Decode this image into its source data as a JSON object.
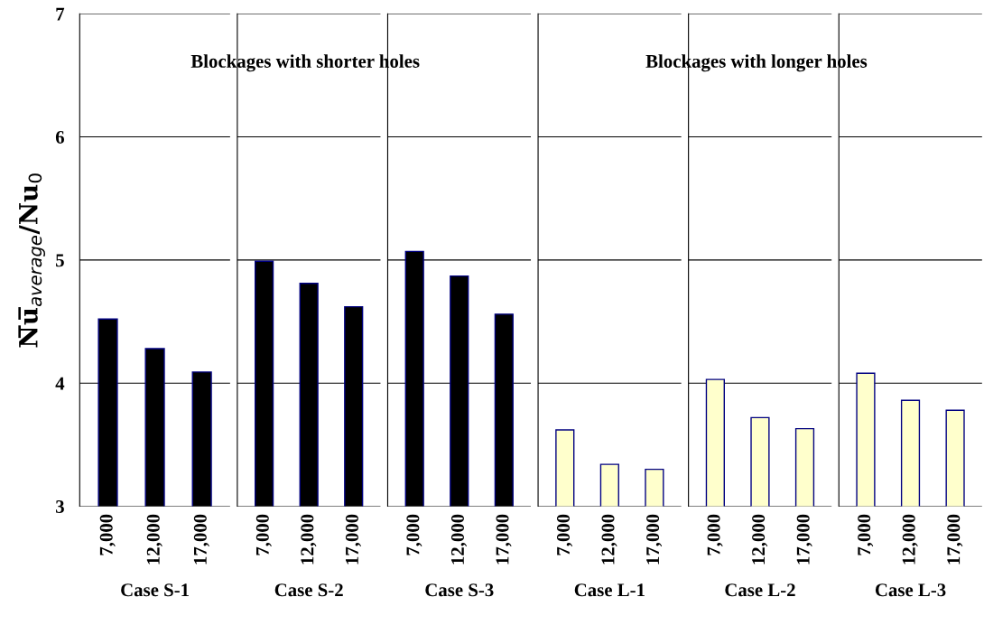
{
  "chart_data": [
    {
      "type": "bar",
      "categories": [
        "7,000",
        "12,000",
        "17,000"
      ],
      "values": [
        4.52,
        4.28,
        4.09
      ],
      "colors": [
        "#000000",
        "#000000",
        "#000000"
      ],
      "xlabel": "Case S-1",
      "ylabel": "N̅u̅$_{average}$/Nu$_{0}$",
      "ylim": [
        3,
        7
      ],
      "yticks": [
        3,
        4,
        5,
        6,
        7
      ],
      "grid": "y"
    },
    {
      "type": "bar",
      "categories": [
        "7,000",
        "12,000",
        "17,000"
      ],
      "values": [
        4.99,
        4.81,
        4.62
      ],
      "colors": [
        "#000000",
        "#000000",
        "#000000"
      ],
      "xlabel": "Case S-2",
      "ylim": [
        3,
        7
      ],
      "yticks": [
        3,
        4,
        5,
        6,
        7
      ],
      "grid": "y",
      "tick_labels": "x",
      "annotations": [
        "Blockages with shorter holes"
      ]
    },
    {
      "type": "bar",
      "categories": [
        "7,000",
        "12,000",
        "17,000"
      ],
      "values": [
        5.07,
        4.87,
        4.56
      ],
      "colors": [
        "#000000",
        "#000000",
        "#000000"
      ],
      "xlabel": "Case S-3",
      "ylim": [
        3,
        7
      ],
      "yticks": [
        3,
        4,
        5,
        6,
        7
      ],
      "grid": "y",
      "tick_labels": "x"
    },
    {
      "type": "bar",
      "categories": [
        "7,000",
        "12,000",
        "17,000"
      ],
      "values": [
        3.62,
        3.34,
        3.3
      ],
      "colors": [
        "#ffffcc",
        "#ffffcc",
        "#ffffcc"
      ],
      "xlabel": "Case L-1",
      "ylim": [
        3,
        7
      ],
      "yticks": [
        3,
        4,
        5,
        6,
        7
      ],
      "grid": "y",
      "tick_labels": "x"
    },
    {
      "type": "bar",
      "categories": [
        "7,000",
        "12,000",
        "17,000"
      ],
      "values": [
        4.03,
        3.72,
        3.63
      ],
      "colors": [
        "#ffffcc",
        "#ffffcc",
        "#ffffcc"
      ],
      "xlabel": "Case L-2",
      "ylim": [
        3,
        7
      ],
      "yticks": [
        3,
        4,
        5,
        6,
        7
      ],
      "grid": "y",
      "tick_labels": "x",
      "annotations": [
        "Blockages with longer holes"
      ]
    },
    {
      "type": "bar",
      "categories": [
        "7,000",
        "12,000",
        "17,000"
      ],
      "values": [
        4.08,
        3.86,
        3.78
      ],
      "colors": [
        "#ffffcc",
        "#ffffcc",
        "#ffffcc"
      ],
      "xlabel": "Case L-3",
      "ylim": [
        3,
        7
      ],
      "yticks": [
        3,
        4,
        5,
        6,
        7
      ],
      "grid": "y",
      "tick_labels": "x"
    }
  ]
}
